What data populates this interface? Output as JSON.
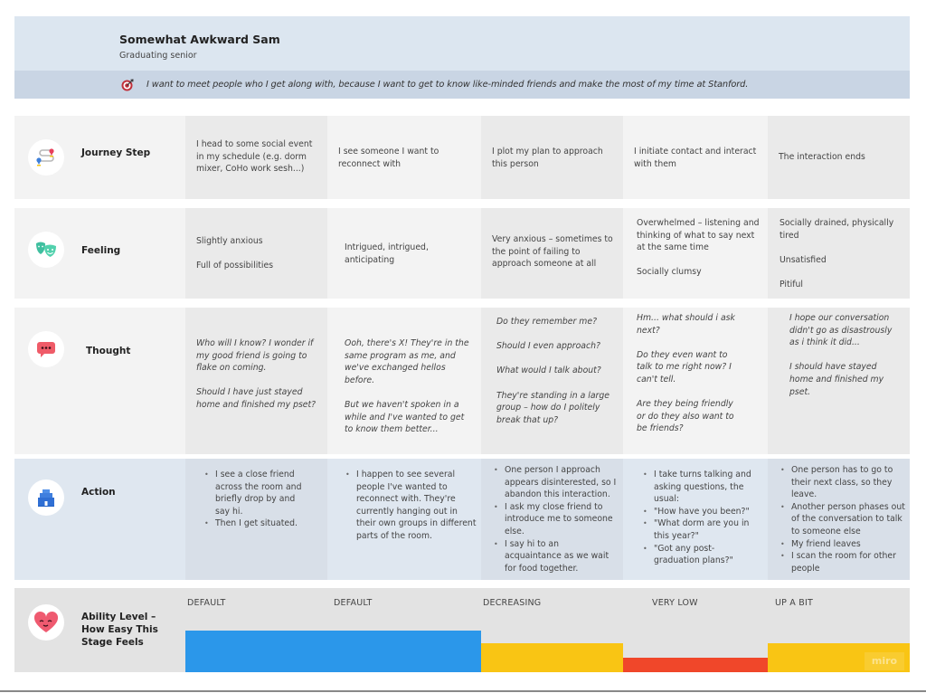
{
  "persona": {
    "name": "Somewhat Awkward Sam",
    "role": "Graduating senior",
    "goal_icon": "target-icon",
    "goal": "I want to meet people who I get along with, because I want to get to know like-minded friends and make the most of my time at Stanford."
  },
  "rows": {
    "journey": {
      "icon": "route-map-pins-icon",
      "label": "Journey Step",
      "cells": [
        [
          "I head to some social event in my schedule (e.g. dorm mixer, CoHo work sesh...)"
        ],
        [
          "I see someone I want to reconnect with"
        ],
        [
          "I plot my plan to approach this person"
        ],
        [
          "I initiate contact and interact with them"
        ],
        [
          "The interaction ends"
        ]
      ]
    },
    "feeling": {
      "icon": "theater-masks-icon",
      "label": "Feeling",
      "cells": [
        [
          "Slightly anxious",
          "Full of possibilities"
        ],
        [
          "Intrigued, intrigued, anticipating"
        ],
        [
          "Very anxious – sometimes to the point of failing to approach someone at all"
        ],
        [
          "Overwhelmed – listening and thinking of what to say next at the same time",
          "Socially clumsy"
        ],
        [
          "Socially drained, physically tired",
          "Unsatisfied",
          "Pitiful"
        ]
      ]
    },
    "thought": {
      "icon": "speech-bubble-icon",
      "label": "Thought",
      "cells": [
        [
          "Who will I know? I wonder if my good friend is going to flake on coming.",
          "Should I have just stayed home and finished my pset?"
        ],
        [
          "Ooh, there's X! They're in the same program as me, and we've exchanged hellos before.",
          "But we haven't spoken in a while and I've wanted to get to know them better..."
        ],
        [
          "Do they remember me?",
          "Should I even approach?",
          "What would I talk about?",
          "They're standing in a large group – how do I politely break that up?"
        ],
        [
          "Hm... what should i ask next?",
          "Do they even want to talk to me right now? I can't tell.",
          "Are they being friendly or do they also want to be friends?"
        ],
        [
          "I hope our conversation didn't go as disastrously as i think it did...",
          "I should have stayed home and finished my pset."
        ]
      ]
    },
    "action": {
      "icon": "building-icon",
      "label": "Action",
      "cells": [
        [
          "I see a close friend across the room and briefly drop by and say hi.",
          "Then I get situated."
        ],
        [
          "I happen to see several people I've wanted to reconnect with. They're currently hanging out in their own groups in different parts of the room."
        ],
        [
          "One person I approach appears disinterested, so I abandon this interaction.",
          "I ask my close friend to introduce me to someone else.",
          "I say hi to an acquaintance as we wait for food together."
        ],
        [
          "I take turns talking and asking questions, the usual:",
          "\"How have you been?\"",
          "\"What dorm are you in this year?\"",
          "\"Got any post-graduation plans?\""
        ],
        [
          "One person has to go to their next class, so they leave.",
          "Another person phases out of the conversation to talk to someone else",
          "My friend leaves",
          "I scan the room for other people"
        ]
      ]
    },
    "ability": {
      "icon": "smiling-heart-icon",
      "label": "Ability Level – How Easy This Stage Feels",
      "levels": [
        {
          "label": "DEFAULT",
          "value": 0.58,
          "color": "#2b97ea"
        },
        {
          "label": "DEFAULT",
          "value": 0.58,
          "color": "#2b97ea"
        },
        {
          "label": "DECREASING",
          "value": 0.4,
          "color": "#f9c514"
        },
        {
          "label": "VERY LOW",
          "value": 0.2,
          "color": "#f0472a"
        },
        {
          "label": "UP A BIT",
          "value": 0.4,
          "color": "#f9c514"
        }
      ]
    }
  },
  "watermark": "miro"
}
